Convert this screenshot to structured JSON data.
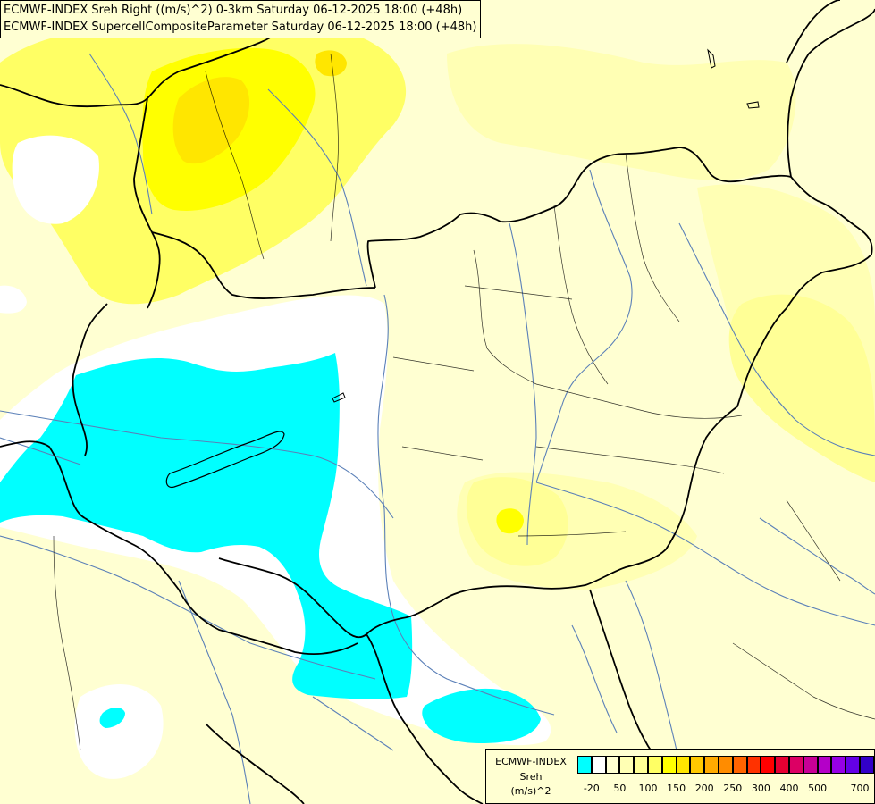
{
  "title": {
    "line1": "ECMWF-INDEX Sreh Right ((m/s)^2) 0-3km Saturday 06-12-2025 18:00 (+48h)",
    "line2": "ECMWF-INDEX SupercellCompositeParameter Saturday 06-12-2025 18:00 (+48h)"
  },
  "legend": {
    "source": "ECMWF-INDEX",
    "parameter": "Sreh",
    "unit": "(m/s)^2",
    "colors": [
      "#00ffff",
      "#ffffff",
      "#ffffd2",
      "#ffffb4",
      "#ffff96",
      "#ffff64",
      "#ffff00",
      "#ffe600",
      "#ffc800",
      "#ffaa00",
      "#ff8c00",
      "#ff6400",
      "#ff3200",
      "#ff0000",
      "#e60032",
      "#dc0064",
      "#c80096",
      "#b400c8",
      "#9600e6",
      "#6400e6",
      "#3200c8",
      "#000096"
    ],
    "ticks": [
      "-20",
      "50",
      "100",
      "150",
      "200",
      "250",
      "300",
      "400",
      "500",
      "700"
    ]
  },
  "map": {
    "colors": {
      "background": "#ffffd2",
      "level_light": "#ffffb4",
      "level_mid": "#ffff64",
      "level_high": "#ffff00",
      "level_max": "#ffe600",
      "negative": "#00ffff",
      "neutral": "#ffffff",
      "border": "#000000",
      "river": "#5b80b8"
    }
  }
}
